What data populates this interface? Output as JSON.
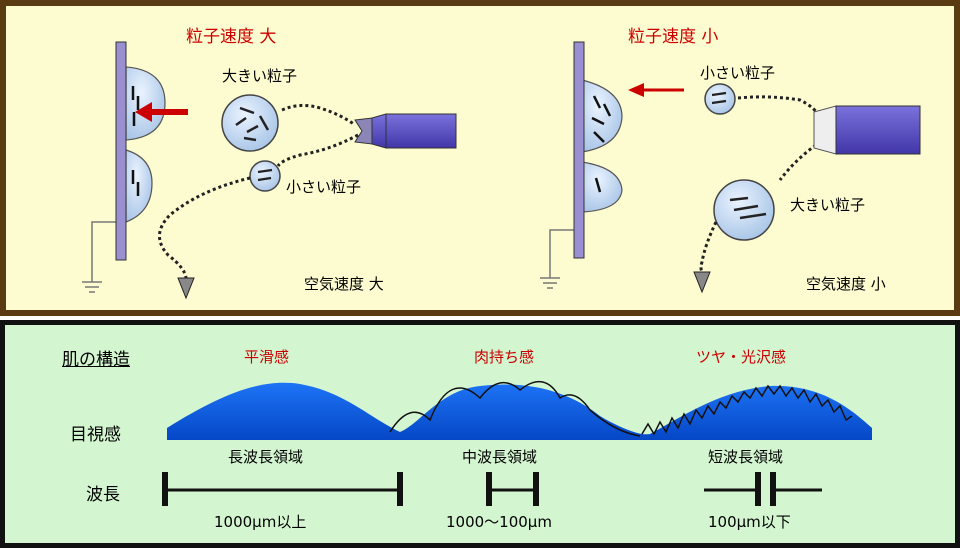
{
  "top": {
    "left": {
      "title": "粒子速度 大",
      "large_particle": "大きい粒子",
      "small_particle": "小さい粒子",
      "air_speed": "空気速度 大"
    },
    "right": {
      "title": "粒子速度 小",
      "small_particle": "小さい粒子",
      "large_particle": "大きい粒子",
      "air_speed": "空気速度 小"
    }
  },
  "bottom": {
    "heading": "肌の構造",
    "row_visual": "目視感",
    "row_wavelength": "波長",
    "categories": [
      {
        "label": "平滑感",
        "region": "長波長領域",
        "range": "1000μm以上"
      },
      {
        "label": "肉持ち感",
        "region": "中波長領域",
        "range": "1000〜100μm"
      },
      {
        "label": "ツヤ・光沢感",
        "region": "短波長領域",
        "range": "100μm以下"
      }
    ]
  },
  "colors": {
    "top_bg": "#fdfcd0",
    "top_border": "#5a3a12",
    "bottom_bg": "#d3f5d0",
    "wave_fill": "#0a5ee8",
    "accent_red": "#cc0000",
    "plate": "#9a8fd0",
    "nozzle": "#5a4fc6"
  }
}
